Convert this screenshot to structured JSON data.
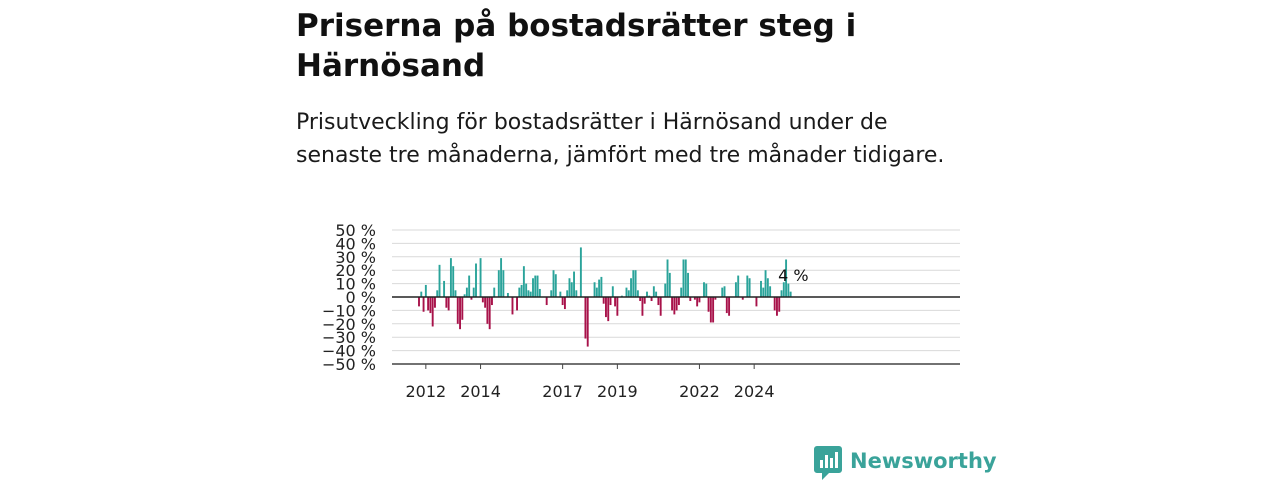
{
  "page": {
    "title": "Priserna på bostadsrätter steg i Härnösand",
    "subtitle": "Prisutveckling för bostadsrätter i Härnösand under de senaste tre månaderna, jämfört med tre månader tidigare."
  },
  "brand": {
    "name": "Newsworthy",
    "logo_icon": "chart-bubble-icon"
  },
  "colors": {
    "positive": "#2aa39a",
    "negative": "#a8124a",
    "grid": "#d9d9d9",
    "zero_line": "#222222"
  },
  "chart_data": {
    "type": "bar",
    "title": "",
    "xlabel": "",
    "ylabel": "",
    "x_start": "2011-10",
    "x_step": "month",
    "ylim": [
      -50,
      50
    ],
    "y_ticks": [
      50,
      40,
      30,
      20,
      10,
      0,
      -10,
      -20,
      -30,
      -40,
      -50
    ],
    "y_tick_labels": [
      "50 %",
      "40 %",
      "30 %",
      "20 %",
      "10 %",
      "0 %",
      "−10 %",
      "−20 %",
      "−30 %",
      "−40 %",
      "−50 %"
    ],
    "x_ticks": [
      "2012",
      "2014",
      "2017",
      "2019",
      "2022",
      "2024"
    ],
    "grid": true,
    "last_value_label": "4 %",
    "values": [
      -7,
      4,
      -11,
      9,
      -10,
      -12,
      -22,
      -8,
      5,
      24,
      0,
      12,
      -8,
      -10,
      29,
      23,
      5,
      -20,
      -24,
      -17,
      2,
      7,
      16,
      -2,
      7,
      25,
      0,
      29,
      -4,
      -8,
      -20,
      -24,
      -6,
      7,
      0,
      20,
      29,
      20,
      0,
      3,
      0,
      -13,
      0,
      -10,
      7,
      9,
      23,
      10,
      5,
      4,
      14,
      16,
      16,
      6,
      0,
      0,
      -6,
      0,
      5,
      20,
      17,
      0,
      4,
      -6,
      -9,
      5,
      14,
      11,
      19,
      5,
      0,
      37,
      0,
      -31,
      -37,
      0,
      0,
      11,
      7,
      13,
      15,
      -5,
      -15,
      -18,
      -6,
      8,
      -7,
      -14,
      0,
      1,
      0,
      7,
      5,
      14,
      20,
      20,
      5,
      -3,
      -14,
      -5,
      4,
      1,
      -3,
      8,
      4,
      -6,
      -14,
      0,
      10,
      28,
      18,
      -10,
      -13,
      -10,
      -6,
      7,
      28,
      28,
      18,
      -3,
      0,
      -2,
      -7,
      -4,
      0,
      11,
      10,
      -11,
      -19,
      -19,
      -2,
      0,
      0,
      7,
      8,
      -12,
      -14,
      0,
      0,
      11,
      16,
      0,
      -2,
      0,
      16,
      14,
      0,
      0,
      -7,
      0,
      12,
      7,
      20,
      14,
      8,
      0,
      -10,
      -14,
      -11,
      5,
      11,
      28,
      10,
      4
    ]
  }
}
